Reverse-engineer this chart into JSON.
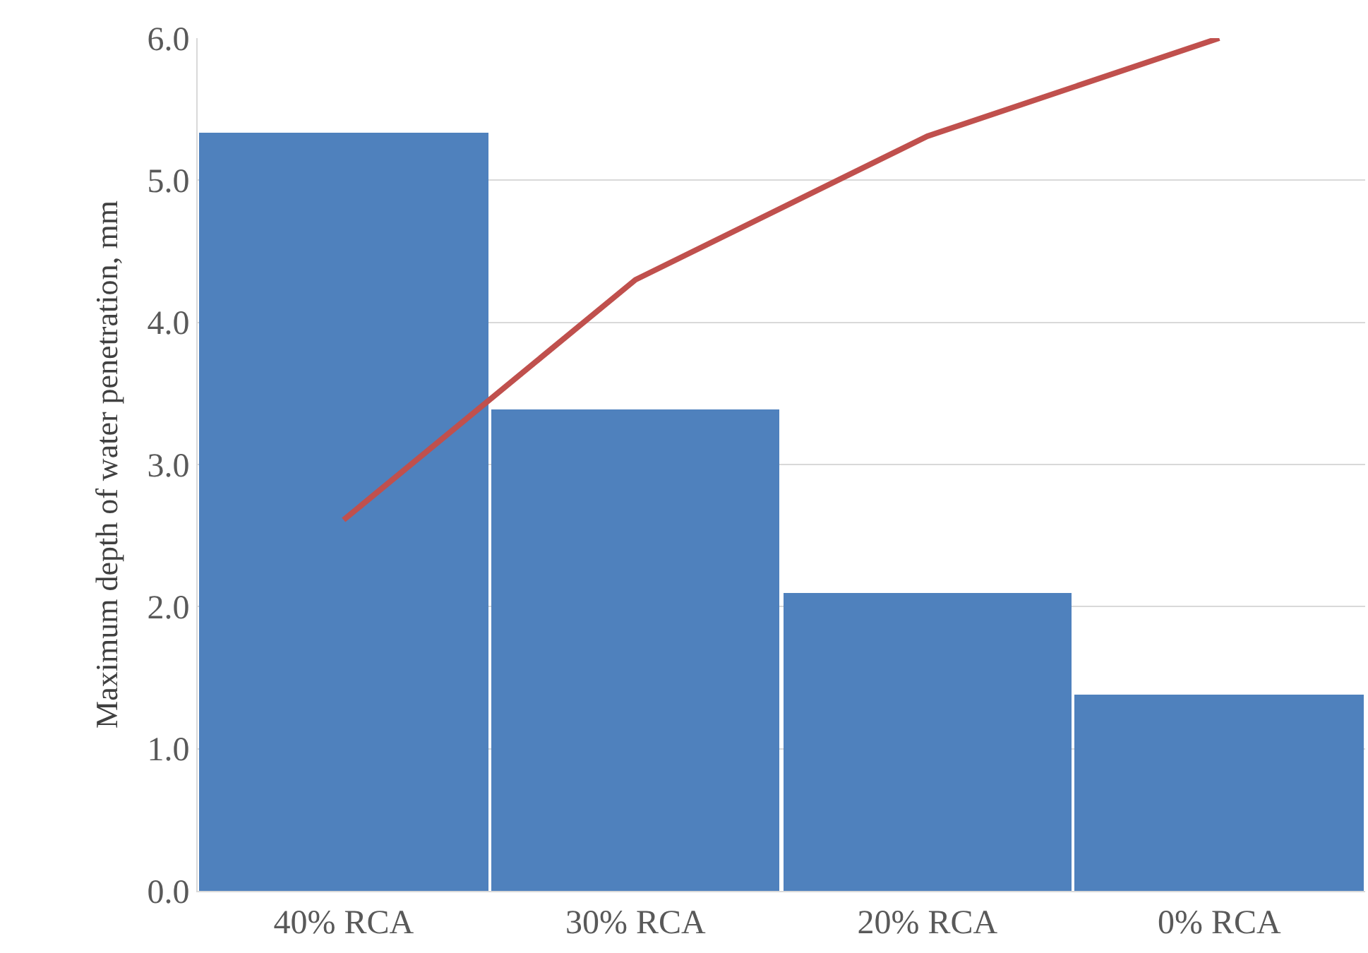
{
  "chart_data": {
    "type": "bar",
    "ylabel": "Maximum depth of water penetration, mm",
    "categories": [
      "40% RCA",
      "30% RCA",
      "20% RCA",
      "0% RCA"
    ],
    "series": [
      {
        "color": "#4f81bd",
        "values": [
          5.33,
          3.39,
          2.1,
          1.38
        ]
      },
      {
        "type": "line",
        "color": "#c0504d",
        "values": [
          2.61,
          4.3,
          5.31,
          6.0
        ]
      }
    ],
    "ylim": [
      0,
      6
    ],
    "yticks": [
      {
        "value": 0,
        "label": "0.0"
      },
      {
        "value": 1,
        "label": "1.0"
      },
      {
        "value": 2,
        "label": "2.0"
      },
      {
        "value": 3,
        "label": "3.0"
      },
      {
        "value": 4,
        "label": "4.0"
      },
      {
        "value": 5,
        "label": "5.0"
      },
      {
        "value": 6,
        "label": "6.0"
      }
    ],
    "grid": "y",
    "marker": "none",
    "line_style": "solid"
  }
}
